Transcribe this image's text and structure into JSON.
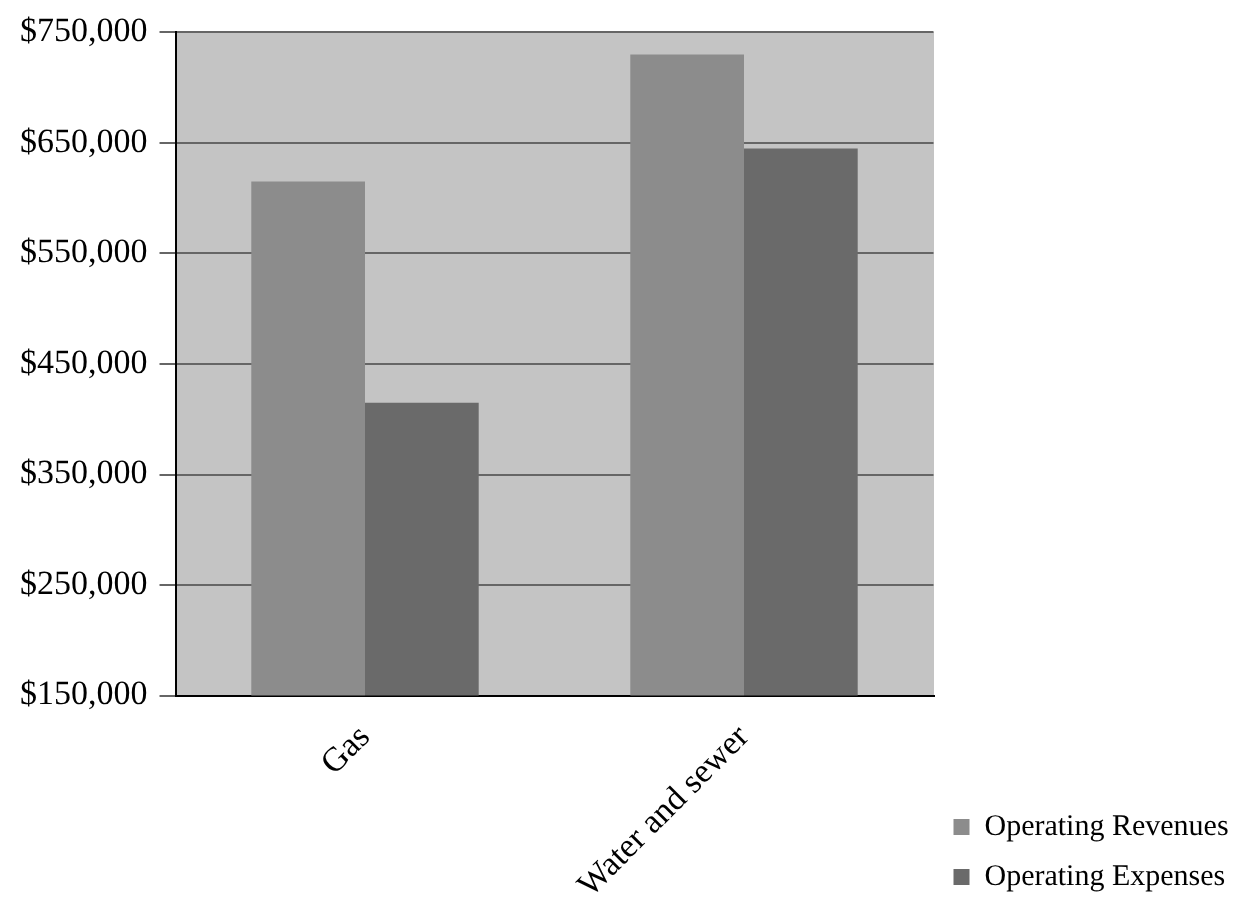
{
  "chart_data": {
    "type": "bar",
    "categories": [
      "Gas",
      "Water and sewer"
    ],
    "series": [
      {
        "name": "Operating Revenues",
        "color": "#8c8c8c",
        "values": [
          615000,
          730000
        ]
      },
      {
        "name": "Operating Expenses",
        "color": "#6a6a6a",
        "values": [
          415000,
          645000
        ]
      }
    ],
    "ylim": [
      150000,
      750000
    ],
    "yticks": [
      {
        "value": 150000,
        "label": "$150,000"
      },
      {
        "value": 250000,
        "label": "$250,000"
      },
      {
        "value": 350000,
        "label": "$350,000"
      },
      {
        "value": 450000,
        "label": "$450,000"
      },
      {
        "value": 550000,
        "label": "$550,000"
      },
      {
        "value": 650000,
        "label": "$650,000"
      },
      {
        "value": 750000,
        "label": "$750,000"
      }
    ],
    "grid": "y",
    "legend": "bottom right"
  }
}
